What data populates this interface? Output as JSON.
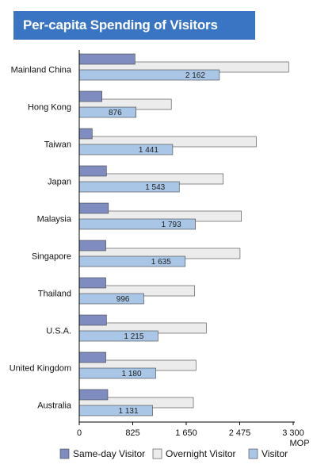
{
  "chart_data": {
    "type": "bar",
    "orientation": "horizontal",
    "title": "Per-capita Spending of Visitors",
    "categories": [
      "Mainland China",
      "Hong Kong",
      "Taiwan",
      "Japan",
      "Malaysia",
      "Singapore",
      "Thailand",
      "U.S.A.",
      "United Kingdom",
      "Australia"
    ],
    "series": [
      {
        "name": "Same-day Visitor",
        "values": [
          860,
          350,
          200,
          420,
          450,
          410,
          410,
          420,
          410,
          440
        ]
      },
      {
        "name": "Overnight Visitor",
        "values": [
          3230,
          1420,
          2730,
          2220,
          2500,
          2480,
          1780,
          1960,
          1800,
          1760
        ]
      },
      {
        "name": "Visitor",
        "values": [
          2162,
          876,
          1441,
          1543,
          1793,
          1635,
          996,
          1215,
          1180,
          1131
        ]
      }
    ],
    "data_labels": {
      "Visitor": [
        "2 162",
        "876",
        "1 441",
        "1 543",
        "1 793",
        "1 635",
        "996",
        "1 215",
        "1 180",
        "1 131"
      ]
    },
    "x_ticks": [
      0,
      825,
      1650,
      2475,
      3300
    ],
    "x_tick_labels": [
      "0",
      "825",
      "1 650",
      "2 475",
      "3 300"
    ],
    "xlabel": "MOP",
    "ylabel": "",
    "xlim": [
      0,
      3300
    ],
    "grid": false,
    "legend_position": "bottom",
    "colors": {
      "title_bg": "#3a75c4",
      "same_day": "#7f8cbf",
      "overnight": "#ececec",
      "visitor": "#a9c6e6",
      "bar_stroke": "#444444",
      "axis": "#000000"
    }
  }
}
